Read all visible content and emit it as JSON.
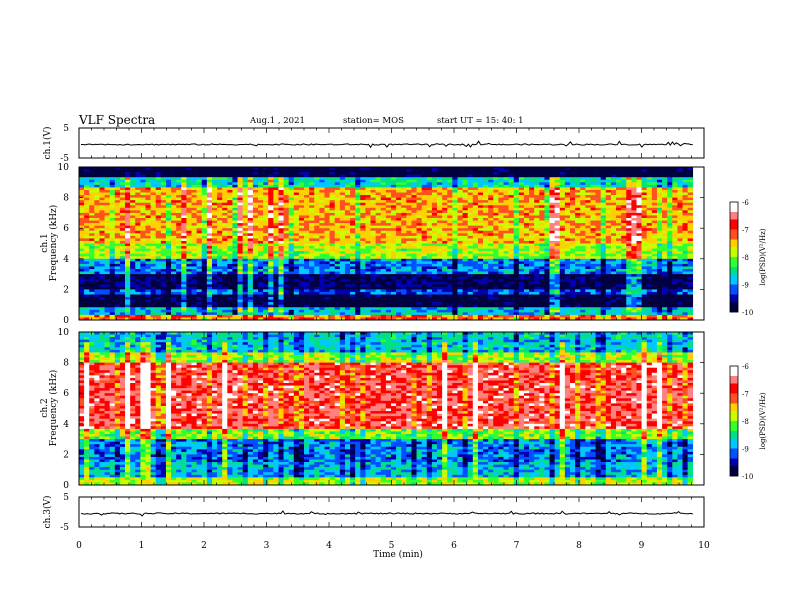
{
  "header": {
    "title": "VLF Spectra",
    "date": "Aug.1 , 2021",
    "station": "station= MOS",
    "start": "start UT = 15: 40: 1"
  },
  "colors": {
    "colormap": [
      "#000040",
      "#0000b0",
      "#0050ff",
      "#00c8ff",
      "#00e080",
      "#30ff30",
      "#c8ff00",
      "#ffd000",
      "#ff5020",
      "#ff0000",
      "#ff8080",
      "#ffffff"
    ]
  },
  "chart_data": [
    {
      "type": "line",
      "name": "ch1-voltage",
      "ylabel": "ch.1(V)",
      "xlim": [
        0,
        10
      ],
      "ylim": [
        -5,
        5
      ],
      "yticks": [
        "5",
        "-5"
      ],
      "baseline": -0.5
    },
    {
      "type": "heatmap",
      "name": "ch1-spectrogram",
      "ylabel": "ch.1\nFrequency (kHz)",
      "xlim": [
        0,
        10
      ],
      "ylim": [
        0,
        10
      ],
      "yticks": [
        "0",
        "2",
        "4",
        "6",
        "8",
        "10"
      ],
      "color_range": [
        -10,
        -6
      ],
      "colorbar_ticks": [
        "-6",
        "-7",
        "-8",
        "-9",
        "-10"
      ],
      "colorbar_label": "log(PSD)(V²/Hz)",
      "bands": [
        {
          "from": 0,
          "to": 0.3,
          "level": -7.2
        },
        {
          "from": 0.3,
          "to": 0.8,
          "level": -8.8
        },
        {
          "from": 0.8,
          "to": 1.6,
          "level": -10
        },
        {
          "from": 1.6,
          "to": 2.0,
          "level": -9.2
        },
        {
          "from": 2.0,
          "to": 3.0,
          "level": -9.8
        },
        {
          "from": 3.0,
          "to": 4.0,
          "level": -9.0
        },
        {
          "from": 4.0,
          "to": 5.0,
          "level": -7.9
        },
        {
          "from": 5.0,
          "to": 8.7,
          "level": -7.4
        },
        {
          "from": 8.7,
          "to": 9.3,
          "level": -8.6
        },
        {
          "from": 9.3,
          "to": 10.0,
          "level": -10
        }
      ]
    },
    {
      "type": "heatmap",
      "name": "ch2-spectrogram",
      "ylabel": "ch.2\nFrequency (kHz)",
      "xlim": [
        0,
        10
      ],
      "ylim": [
        0,
        10
      ],
      "yticks": [
        "0",
        "2",
        "4",
        "6",
        "8",
        "10"
      ],
      "color_range": [
        -10,
        -6
      ],
      "colorbar_ticks": [
        "-6",
        "-7",
        "-8",
        "-9",
        "-10"
      ],
      "colorbar_label": "log(PSD)(V²/Hz)",
      "bands": [
        {
          "from": 0,
          "to": 0.5,
          "level": -7.8
        },
        {
          "from": 0.5,
          "to": 1.5,
          "level": -8.8
        },
        {
          "from": 1.5,
          "to": 3.0,
          "level": -9.0
        },
        {
          "from": 3.0,
          "to": 3.7,
          "level": -8.0
        },
        {
          "from": 3.7,
          "to": 8.0,
          "level": -6.7
        },
        {
          "from": 8.0,
          "to": 8.7,
          "level": -7.9
        },
        {
          "from": 8.7,
          "to": 10.0,
          "level": -8.7
        }
      ]
    },
    {
      "type": "line",
      "name": "ch3-voltage",
      "ylabel": "ch.3(V)",
      "xlim": [
        0,
        10
      ],
      "ylim": [
        -5,
        5
      ],
      "yticks": [
        "5",
        "-5"
      ],
      "baseline": -0.5
    }
  ],
  "xaxis": {
    "label": "Time (min)",
    "ticks": [
      "0",
      "1",
      "2",
      "3",
      "4",
      "5",
      "6",
      "7",
      "8",
      "9",
      "10"
    ],
    "data_end": 9.82
  }
}
